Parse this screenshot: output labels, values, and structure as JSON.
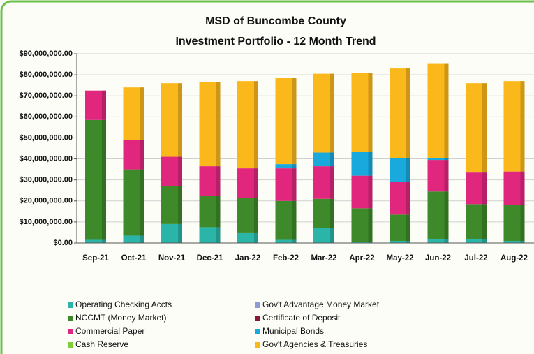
{
  "chart_data": {
    "type": "stacked_bar",
    "title": "MSD of Buncombe County",
    "subtitle": "Investment Portfolio - 12 Month Trend",
    "categories": [
      "Sep-21",
      "Oct-21",
      "Nov-21",
      "Dec-21",
      "Jan-22",
      "Feb-22",
      "Mar-22",
      "Apr-22",
      "May-22",
      "Jun-22",
      "Jul-22",
      "Aug-22"
    ],
    "series": [
      {
        "name": "Operating Checking Accts",
        "color": "#2bb5a8",
        "values": [
          1500000,
          3500000,
          9000000,
          7500000,
          5000000,
          1500000,
          7000000,
          500000,
          1000000,
          2000000,
          2000000,
          1000000
        ]
      },
      {
        "name": "Gov't Advantage Money Market",
        "color": "#8e9bd6",
        "values": [
          0,
          0,
          0,
          0,
          0,
          0,
          0,
          0,
          0,
          0,
          0,
          0
        ]
      },
      {
        "name": "NCCMT (Money Market)",
        "color": "#3e8a2a",
        "values": [
          57000000,
          31500000,
          18000000,
          15000000,
          16500000,
          18500000,
          14000000,
          16000000,
          12500000,
          22500000,
          16500000,
          17000000
        ]
      },
      {
        "name": "Certificate of Deposit",
        "color": "#8b1a3a",
        "values": [
          0,
          0,
          0,
          0,
          0,
          0,
          0,
          0,
          0,
          0,
          0,
          0
        ]
      },
      {
        "name": "Commercial Paper",
        "color": "#e0267d",
        "values": [
          14000000,
          14000000,
          14000000,
          14000000,
          14000000,
          15500000,
          15500000,
          15500000,
          15500000,
          15000000,
          15000000,
          16000000
        ]
      },
      {
        "name": "Municipal Bonds",
        "color": "#19a9dd",
        "values": [
          0,
          0,
          0,
          0,
          0,
          2000000,
          6500000,
          11500000,
          11500000,
          1000000,
          0,
          0
        ]
      },
      {
        "name": "Cash  Reserve",
        "color": "#7ccf3a",
        "values": [
          0,
          0,
          0,
          0,
          0,
          0,
          0,
          0,
          0,
          0,
          0,
          0
        ]
      },
      {
        "name": "Gov't Agencies & Treasuries",
        "color": "#fbb81b",
        "values": [
          0,
          25000000,
          35000000,
          40000000,
          41500000,
          41000000,
          37500000,
          37500000,
          42500000,
          45000000,
          42500000,
          43000000
        ]
      }
    ],
    "ylim": [
      0,
      90000000
    ],
    "yticks": [
      {
        "value": 0,
        "label": "$0.00"
      },
      {
        "value": 10000000,
        "label": "$10,000,000.00"
      },
      {
        "value": 20000000,
        "label": "$20,000,000.00"
      },
      {
        "value": 30000000,
        "label": "$30,000,000.00"
      },
      {
        "value": 40000000,
        "label": "$40,000,000.00"
      },
      {
        "value": 50000000,
        "label": "$50,000,000.00"
      },
      {
        "value": 60000000,
        "label": "$60,000,000.00"
      },
      {
        "value": 70000000,
        "label": "$70,000,000.00"
      },
      {
        "value": 80000000,
        "label": "$80,000,000.00"
      },
      {
        "value": 90000000,
        "label": "$90,000,000.00"
      }
    ],
    "grid": true
  }
}
